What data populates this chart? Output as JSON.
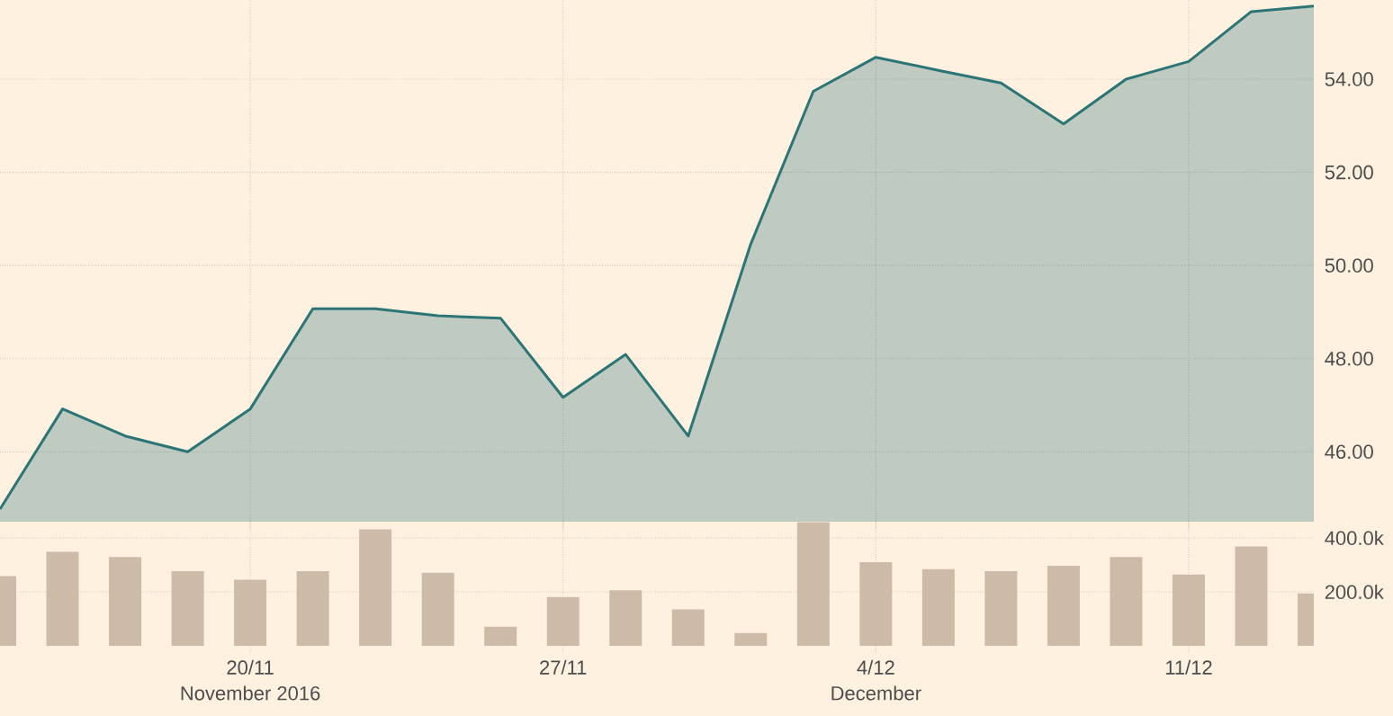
{
  "chart_data": [
    {
      "type": "area",
      "categories": [
        null,
        null,
        null,
        null,
        null,
        null,
        null,
        null,
        null,
        null,
        null,
        null,
        null,
        null,
        null,
        null,
        null,
        null,
        null,
        null,
        null,
        null
      ],
      "values": [
        44.77,
        46.92,
        46.34,
        46.0,
        46.92,
        49.07,
        49.07,
        48.92,
        48.87,
        47.17,
        48.09,
        46.34,
        50.46,
        53.74,
        54.47,
        54.19,
        53.92,
        53.04,
        54.0,
        54.38,
        55.45,
        55.57
      ],
      "color": "#2b7576",
      "ylim": [
        44.5,
        55.7
      ],
      "yticks": [
        {
          "value": 46,
          "label": "46.00"
        },
        {
          "value": 48,
          "label": "48.00"
        },
        {
          "value": 50,
          "label": "50.00"
        },
        {
          "value": 52,
          "label": "52.00"
        },
        {
          "value": 54,
          "label": "54.00"
        }
      ],
      "grid": true,
      "tick_labels": "y"
    },
    {
      "type": "bar",
      "categories": [
        null,
        null,
        null,
        null,
        "20/11",
        null,
        null,
        null,
        null,
        "27/11",
        null,
        null,
        null,
        null,
        "4/12",
        null,
        null,
        null,
        null,
        "11/12",
        null,
        null
      ],
      "values": [
        258000,
        348000,
        329000,
        277000,
        245000,
        277000,
        432000,
        271000,
        71000,
        181000,
        206000,
        135000,
        47000,
        458000,
        310000,
        284000,
        277000,
        297000,
        329000,
        264000,
        368000,
        194000
      ],
      "color": "#cdbaa7",
      "ylim": [
        0,
        460000
      ],
      "yticks": [
        {
          "value": 200000,
          "label": "200.0k"
        },
        {
          "value": 400000,
          "label": "400.0k"
        }
      ],
      "grid": true,
      "annotations": [
        "November 2016",
        "December"
      ]
    }
  ]
}
